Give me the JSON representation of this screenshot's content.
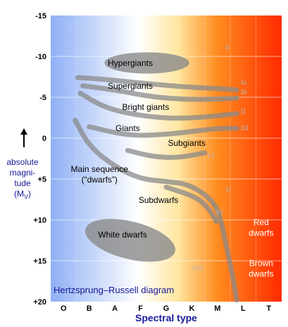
{
  "chart_data": {
    "type": "scatter",
    "title": "Hertzsprung–Russell diagram",
    "xlabel": "Spectral type",
    "ylabel": [
      "absolute",
      "magni-",
      "tude",
      "(M",
      "V",
      ")"
    ],
    "x_categories": [
      "O",
      "B",
      "A",
      "F",
      "G",
      "K",
      "M",
      "L",
      "T"
    ],
    "y_ticks": [
      "-15",
      "-10",
      "-5",
      "0",
      "+5",
      "+10",
      "+15",
      "+20"
    ],
    "ylim": [
      -15,
      20
    ],
    "y_inverted": true,
    "grid": true,
    "colors": {
      "O": "#8fb0f5",
      "A": "#ffffff",
      "G": "#ffe6a0",
      "M": "#ff8c20",
      "T": "#ff2a00",
      "band": "#8a8a8a",
      "text_blue": "#1a1a99"
    },
    "regions": [
      {
        "label": "Hypergiants",
        "type": "ellipse",
        "cx": 3.25,
        "cy": -9.2,
        "rx": 1.65,
        "ry": 1.3
      },
      {
        "label": "Supergiants",
        "type": "band",
        "points": [
          [
            0.55,
            -7.4
          ],
          [
            1.2,
            -7.3
          ],
          [
            2.5,
            -6.9
          ],
          [
            4.5,
            -6.3
          ],
          [
            6.3,
            -6.0
          ],
          [
            6.75,
            -5.9
          ]
        ]
      },
      {
        "label": "",
        "type": "band",
        "points": [
          [
            0.75,
            -6.4
          ],
          [
            2.0,
            -5.9
          ],
          [
            3.5,
            -5.0
          ],
          [
            5.0,
            -4.7
          ],
          [
            6.2,
            -4.8
          ],
          [
            6.75,
            -4.9
          ]
        ]
      },
      {
        "label": "Bright giants",
        "type": "band",
        "points": [
          [
            0.65,
            -5.5
          ],
          [
            1.5,
            -3.9
          ],
          [
            2.5,
            -3.0
          ],
          [
            4.0,
            -2.4
          ],
          [
            5.3,
            -2.5
          ],
          [
            6.75,
            -3.0
          ]
        ]
      },
      {
        "label": "Giants",
        "type": "band",
        "points": [
          [
            1.0,
            -1.4
          ],
          [
            2.5,
            -0.3
          ],
          [
            3.8,
            -0.4
          ],
          [
            5.0,
            -0.8
          ],
          [
            6.0,
            -1.2
          ],
          [
            6.75,
            -1.2
          ]
        ]
      },
      {
        "label": "Subgiants",
        "type": "band",
        "points": [
          [
            2.5,
            1.5
          ],
          [
            3.5,
            2.3
          ],
          [
            4.5,
            2.4
          ],
          [
            5.5,
            1.8
          ]
        ]
      },
      {
        "label": "Main sequence (“dwarfs”)",
        "type": "band",
        "points": [
          [
            0.45,
            -2.2
          ],
          [
            1.0,
            1.0
          ],
          [
            2.0,
            3.5
          ],
          [
            3.0,
            5.0
          ],
          [
            4.0,
            5.3
          ],
          [
            4.8,
            5.6
          ],
          [
            5.5,
            6.8
          ],
          [
            6.0,
            8.5
          ],
          [
            6.2,
            11.0
          ],
          [
            6.4,
            14.0
          ],
          [
            6.6,
            17.0
          ],
          [
            6.75,
            19.8
          ]
        ]
      },
      {
        "label": "Subdwarfs",
        "type": "band",
        "points": [
          [
            4.0,
            6.0
          ],
          [
            5.0,
            7.0
          ],
          [
            5.5,
            8.0
          ],
          [
            5.9,
            9.8
          ],
          [
            5.95,
            10.2
          ]
        ]
      },
      {
        "label": "White dwarfs",
        "type": "ellipse",
        "cx": 2.6,
        "cy": 12.5,
        "rx": 1.8,
        "ry": 2.3,
        "rotate": 14
      },
      {
        "label": "Red dwarfs",
        "type": "label",
        "cx": 7.8,
        "cy": 10.8
      },
      {
        "label": "Brown dwarfs",
        "type": "label",
        "cx": 7.8,
        "cy": 16.2
      }
    ],
    "luminosity_classes": [
      {
        "label": "0",
        "x": 6.3,
        "y": -11.1
      },
      {
        "label": "Ia",
        "x": 6.9,
        "y": -6.9
      },
      {
        "label": "Ib",
        "x": 6.9,
        "y": -5.7
      },
      {
        "label": "II",
        "x": 6.9,
        "y": -3.3
      },
      {
        "label": "III",
        "x": 6.9,
        "y": -1.3
      },
      {
        "label": "IV",
        "x": 5.6,
        "y": 2.1
      },
      {
        "label": "V",
        "x": 6.3,
        "y": 6.3
      },
      {
        "label": "VI",
        "x": 5.9,
        "y": 9.0
      },
      {
        "label": "VII",
        "x": 5.0,
        "y": 15.9
      }
    ]
  }
}
